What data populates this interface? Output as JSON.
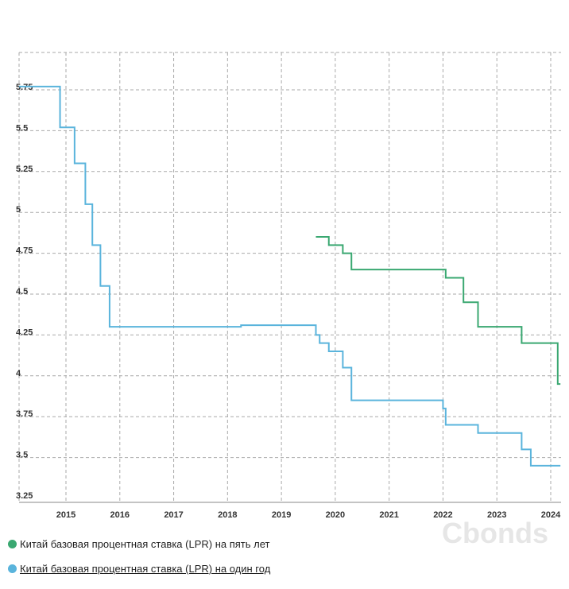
{
  "chart_data": {
    "type": "line",
    "step": true,
    "title": "",
    "xlabel": "",
    "ylabel": "",
    "xlim": [
      2014.15,
      2024.2
    ],
    "ylim": [
      3.25,
      5.98
    ],
    "y_ticks": [
      3.25,
      3.5,
      3.75,
      4,
      4.25,
      4.5,
      4.75,
      5,
      5.25,
      5.5,
      5.75
    ],
    "y_tick_labels": [
      "3.25",
      "3.5",
      "3.75",
      "4",
      "4.25",
      "4.5",
      "4.75",
      "5",
      "5.25",
      "5.5",
      "5.75"
    ],
    "x_ticks": [
      2015,
      2016,
      2017,
      2018,
      2019,
      2020,
      2021,
      2022,
      2023,
      2024
    ],
    "x_tick_labels": [
      "2015",
      "2016",
      "2017",
      "2018",
      "2019",
      "2020",
      "2021",
      "2022",
      "2023",
      "2024"
    ],
    "grid": true,
    "legend_position": "bottom-left",
    "series": [
      {
        "name": "Китай базовая процентная ставка (LPR) на пять лет",
        "color": "#3aa871",
        "x": [
          2019.64,
          2019.88,
          2020.14,
          2020.3,
          2022.05,
          2022.38,
          2022.65,
          2023.46,
          2024.13
        ],
        "y": [
          4.85,
          4.8,
          4.75,
          4.65,
          4.6,
          4.45,
          4.3,
          4.2,
          3.95
        ]
      },
      {
        "name": "Китай базовая процентная ставка (LPR) на один год",
        "color": "#5ab4dc",
        "x": [
          2013.9,
          2014.89,
          2015.16,
          2015.36,
          2015.49,
          2015.64,
          2015.81,
          2018.25,
          2019.64,
          2019.71,
          2019.88,
          2020.14,
          2020.3,
          2022.0,
          2022.05,
          2022.65,
          2023.46,
          2023.63
        ],
        "y": [
          5.77,
          5.52,
          5.3,
          5.05,
          4.8,
          4.55,
          4.3,
          4.31,
          4.25,
          4.2,
          4.15,
          4.05,
          3.85,
          3.8,
          3.7,
          3.65,
          3.55,
          3.45
        ]
      }
    ]
  },
  "watermark": "Cbonds"
}
